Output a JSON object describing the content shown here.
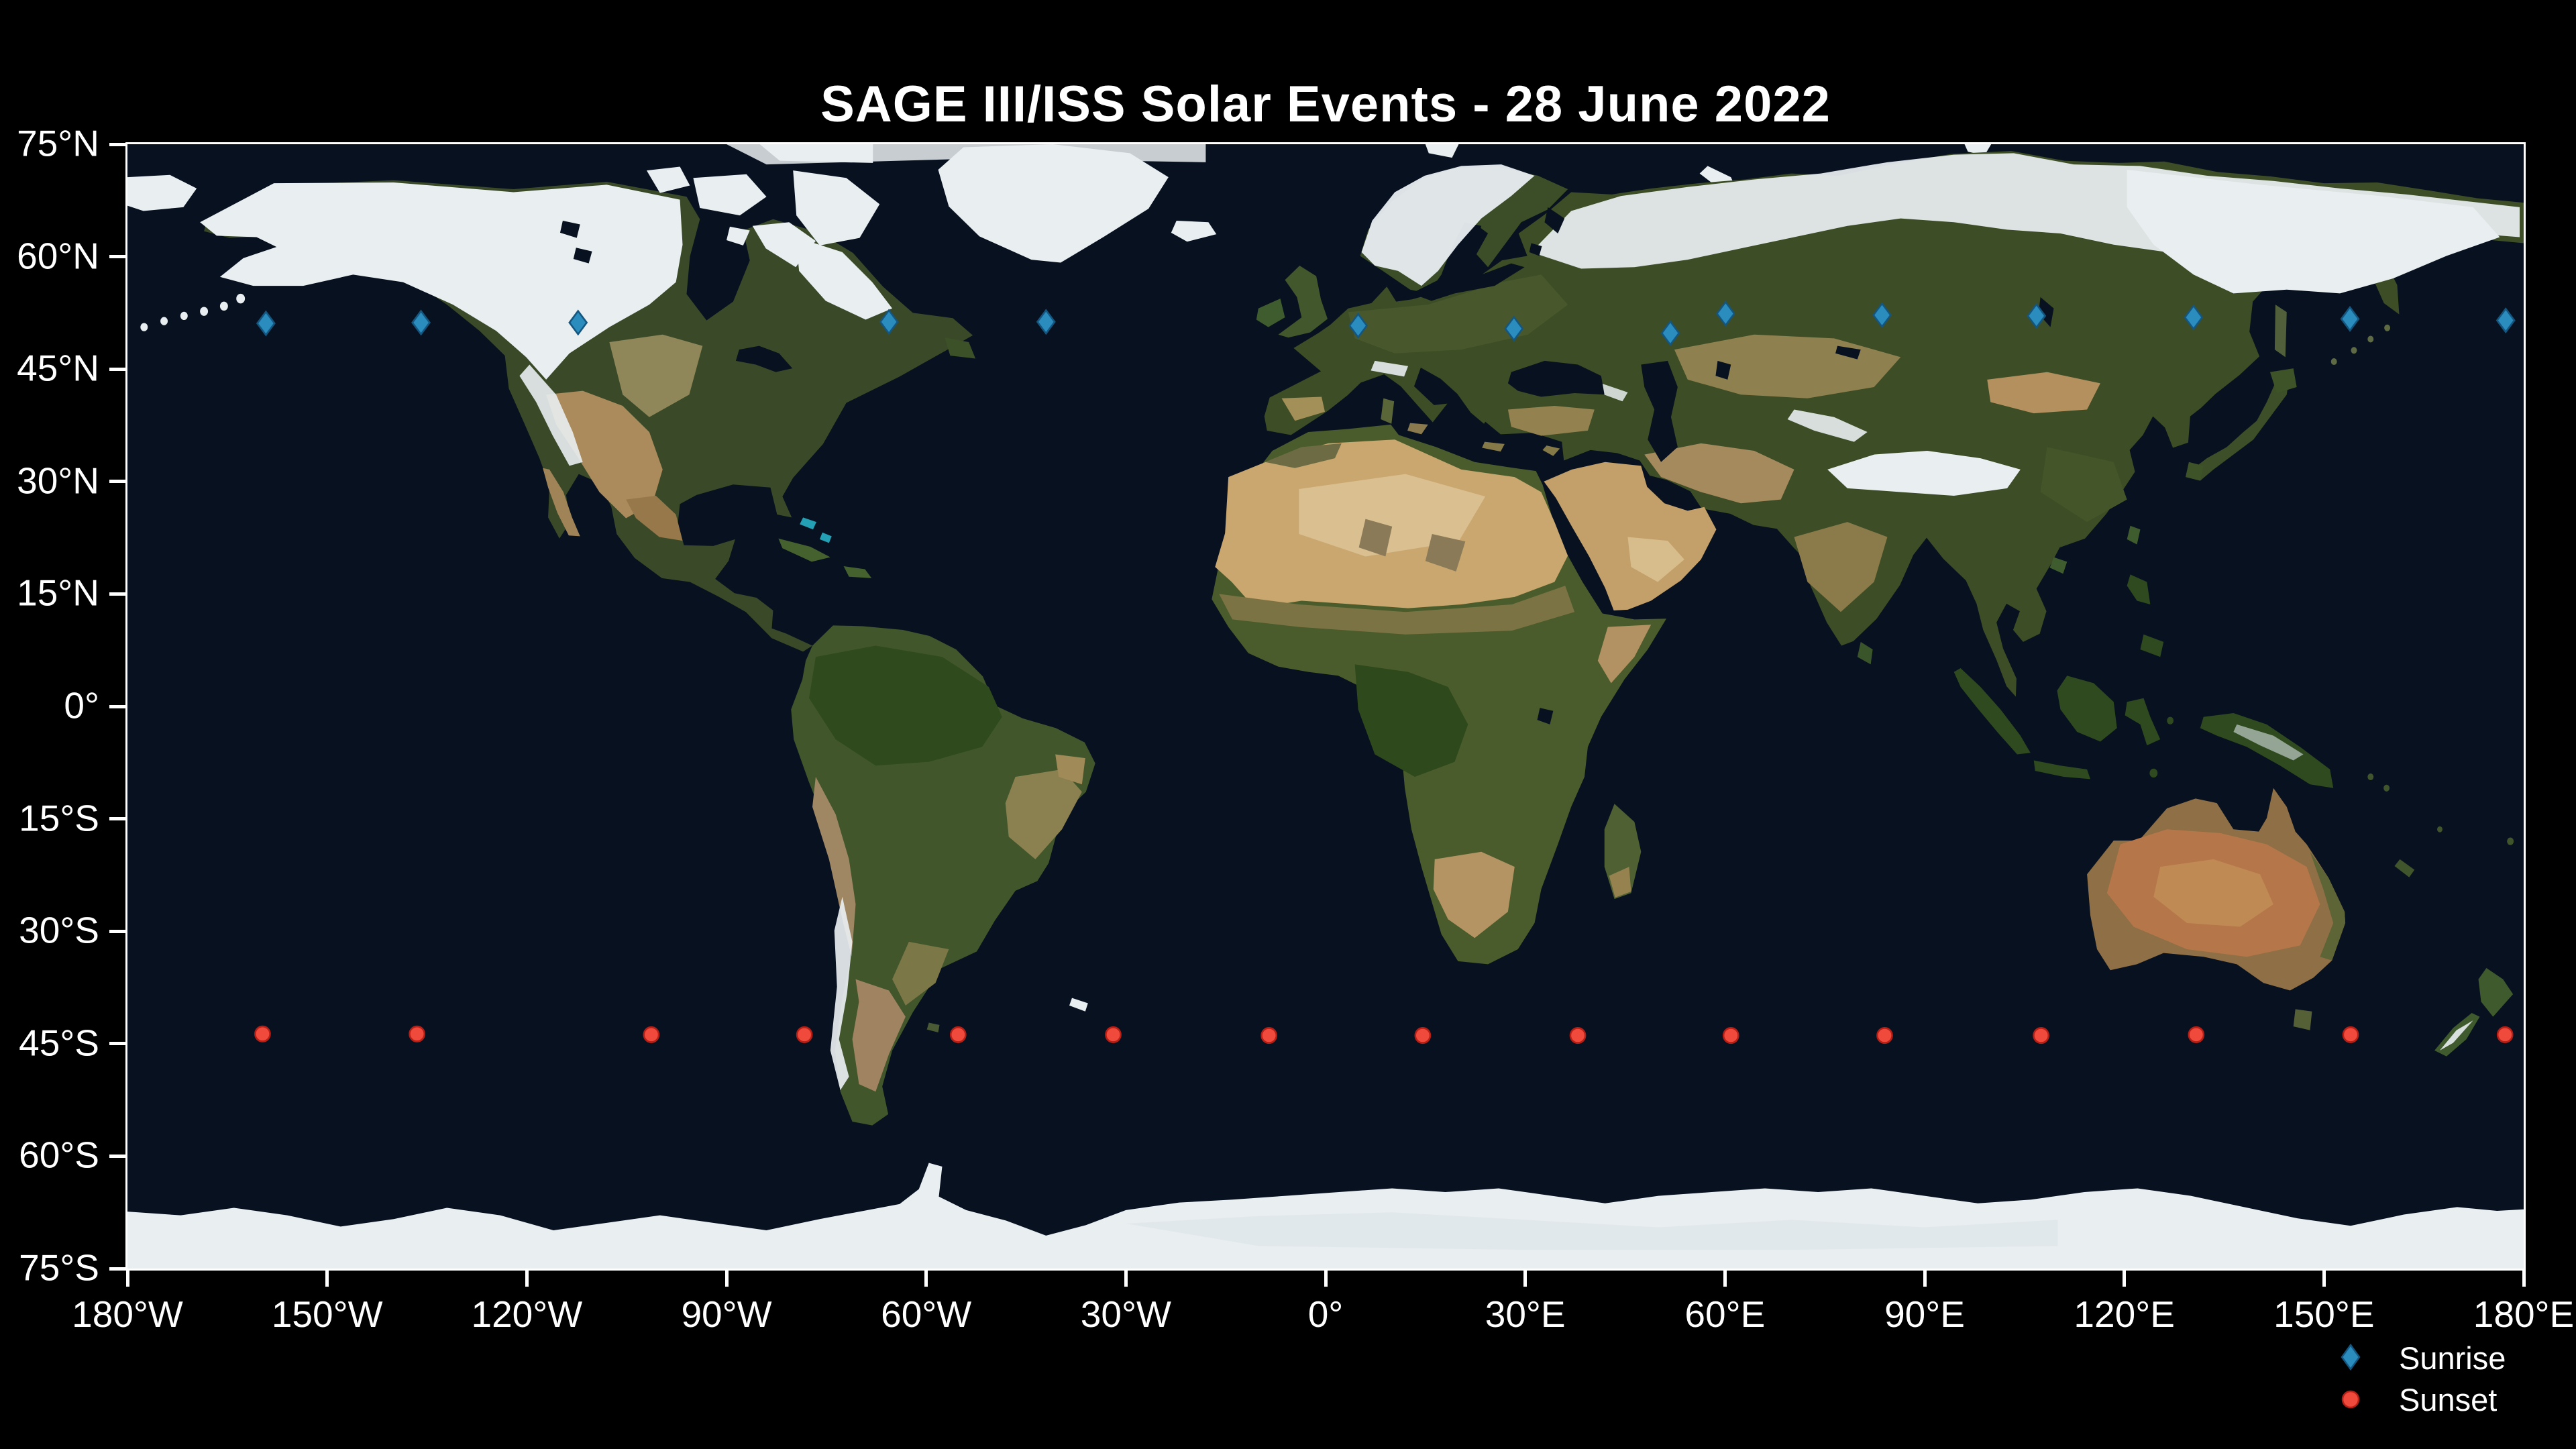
{
  "title": "SAGE III/ISS Solar Events - 28 June 2022",
  "axes": {
    "lat_ticks": [
      {
        "label": "75°N",
        "value": 75
      },
      {
        "label": "60°N",
        "value": 60
      },
      {
        "label": "45°N",
        "value": 45
      },
      {
        "label": "30°N",
        "value": 30
      },
      {
        "label": "15°N",
        "value": 15
      },
      {
        "label": "0°",
        "value": 0
      },
      {
        "label": "15°S",
        "value": -15
      },
      {
        "label": "30°S",
        "value": -30
      },
      {
        "label": "45°S",
        "value": -45
      },
      {
        "label": "60°S",
        "value": -60
      },
      {
        "label": "75°S",
        "value": -75
      }
    ],
    "lon_ticks": [
      {
        "label": "180°W",
        "value": -180
      },
      {
        "label": "150°W",
        "value": -150
      },
      {
        "label": "120°W",
        "value": -120
      },
      {
        "label": "90°W",
        "value": -90
      },
      {
        "label": "60°W",
        "value": -60
      },
      {
        "label": "30°W",
        "value": -30
      },
      {
        "label": "0°",
        "value": 0
      },
      {
        "label": "30°E",
        "value": 30
      },
      {
        "label": "60°E",
        "value": 60
      },
      {
        "label": "90°E",
        "value": 90
      },
      {
        "label": "120°E",
        "value": 120
      },
      {
        "label": "150°E",
        "value": 150
      },
      {
        "label": "180°E",
        "value": 180
      }
    ]
  },
  "legend": {
    "items": [
      {
        "label": "Sunrise",
        "marker": "diamond",
        "color": "#2b8cbe"
      },
      {
        "label": "Sunset",
        "marker": "circle",
        "color": "#f04a3c"
      }
    ]
  },
  "chart_data": {
    "type": "scatter",
    "title": "SAGE III/ISS Solar Events - 28 June 2022",
    "basemap": "Blue Marble satellite imagery world map, equirectangular projection",
    "x_axis": {
      "range": [
        -180,
        180
      ],
      "tick_interval": 30,
      "unit": "degrees longitude"
    },
    "y_axis": {
      "range": [
        -75,
        75
      ],
      "tick_interval": 15,
      "unit": "degrees latitude"
    },
    "grid": false,
    "legend_position": "lower right, outside plot",
    "series": [
      {
        "name": "Sunrise",
        "marker": "diamond",
        "color": "#2b8cbe",
        "edge_color": "#14567f",
        "points": [
          {
            "lon": -159.2,
            "lat": 51.1
          },
          {
            "lon": -135.9,
            "lat": 51.2
          },
          {
            "lon": -112.3,
            "lat": 51.2
          },
          {
            "lon": -65.6,
            "lat": 51.3
          },
          {
            "lon": -42.0,
            "lat": 51.3
          },
          {
            "lon": 4.9,
            "lat": 50.8
          },
          {
            "lon": 28.3,
            "lat": 50.4
          },
          {
            "lon": 51.8,
            "lat": 49.8
          },
          {
            "lon": 60.1,
            "lat": 52.4
          },
          {
            "lon": 83.6,
            "lat": 52.2
          },
          {
            "lon": 106.8,
            "lat": 52.1
          },
          {
            "lon": 130.4,
            "lat": 51.9
          },
          {
            "lon": 153.9,
            "lat": 51.7
          },
          {
            "lon": 177.3,
            "lat": 51.5
          }
        ]
      },
      {
        "name": "Sunset",
        "marker": "circle",
        "color": "#f04a3c",
        "edge_color": "#b51f16",
        "points": [
          {
            "lon": -159.7,
            "lat": -43.7
          },
          {
            "lon": -136.5,
            "lat": -43.7
          },
          {
            "lon": -101.3,
            "lat": -43.8
          },
          {
            "lon": -78.3,
            "lat": -43.8
          },
          {
            "lon": -55.2,
            "lat": -43.8
          },
          {
            "lon": -31.9,
            "lat": -43.8
          },
          {
            "lon": -8.5,
            "lat": -43.9
          },
          {
            "lon": 14.6,
            "lat": -43.9
          },
          {
            "lon": 37.9,
            "lat": -43.9
          },
          {
            "lon": 60.9,
            "lat": -43.9
          },
          {
            "lon": 84.0,
            "lat": -43.9
          },
          {
            "lon": 107.5,
            "lat": -43.9
          },
          {
            "lon": 130.8,
            "lat": -43.8
          },
          {
            "lon": 154.0,
            "lat": -43.8
          },
          {
            "lon": 177.2,
            "lat": -43.8
          }
        ]
      }
    ]
  },
  "colors": {
    "background": "#000000",
    "ocean": "#081120",
    "snow_ice": "#e9eef1",
    "axis_text": "#ffffff",
    "plot_border": "#ffffff"
  }
}
